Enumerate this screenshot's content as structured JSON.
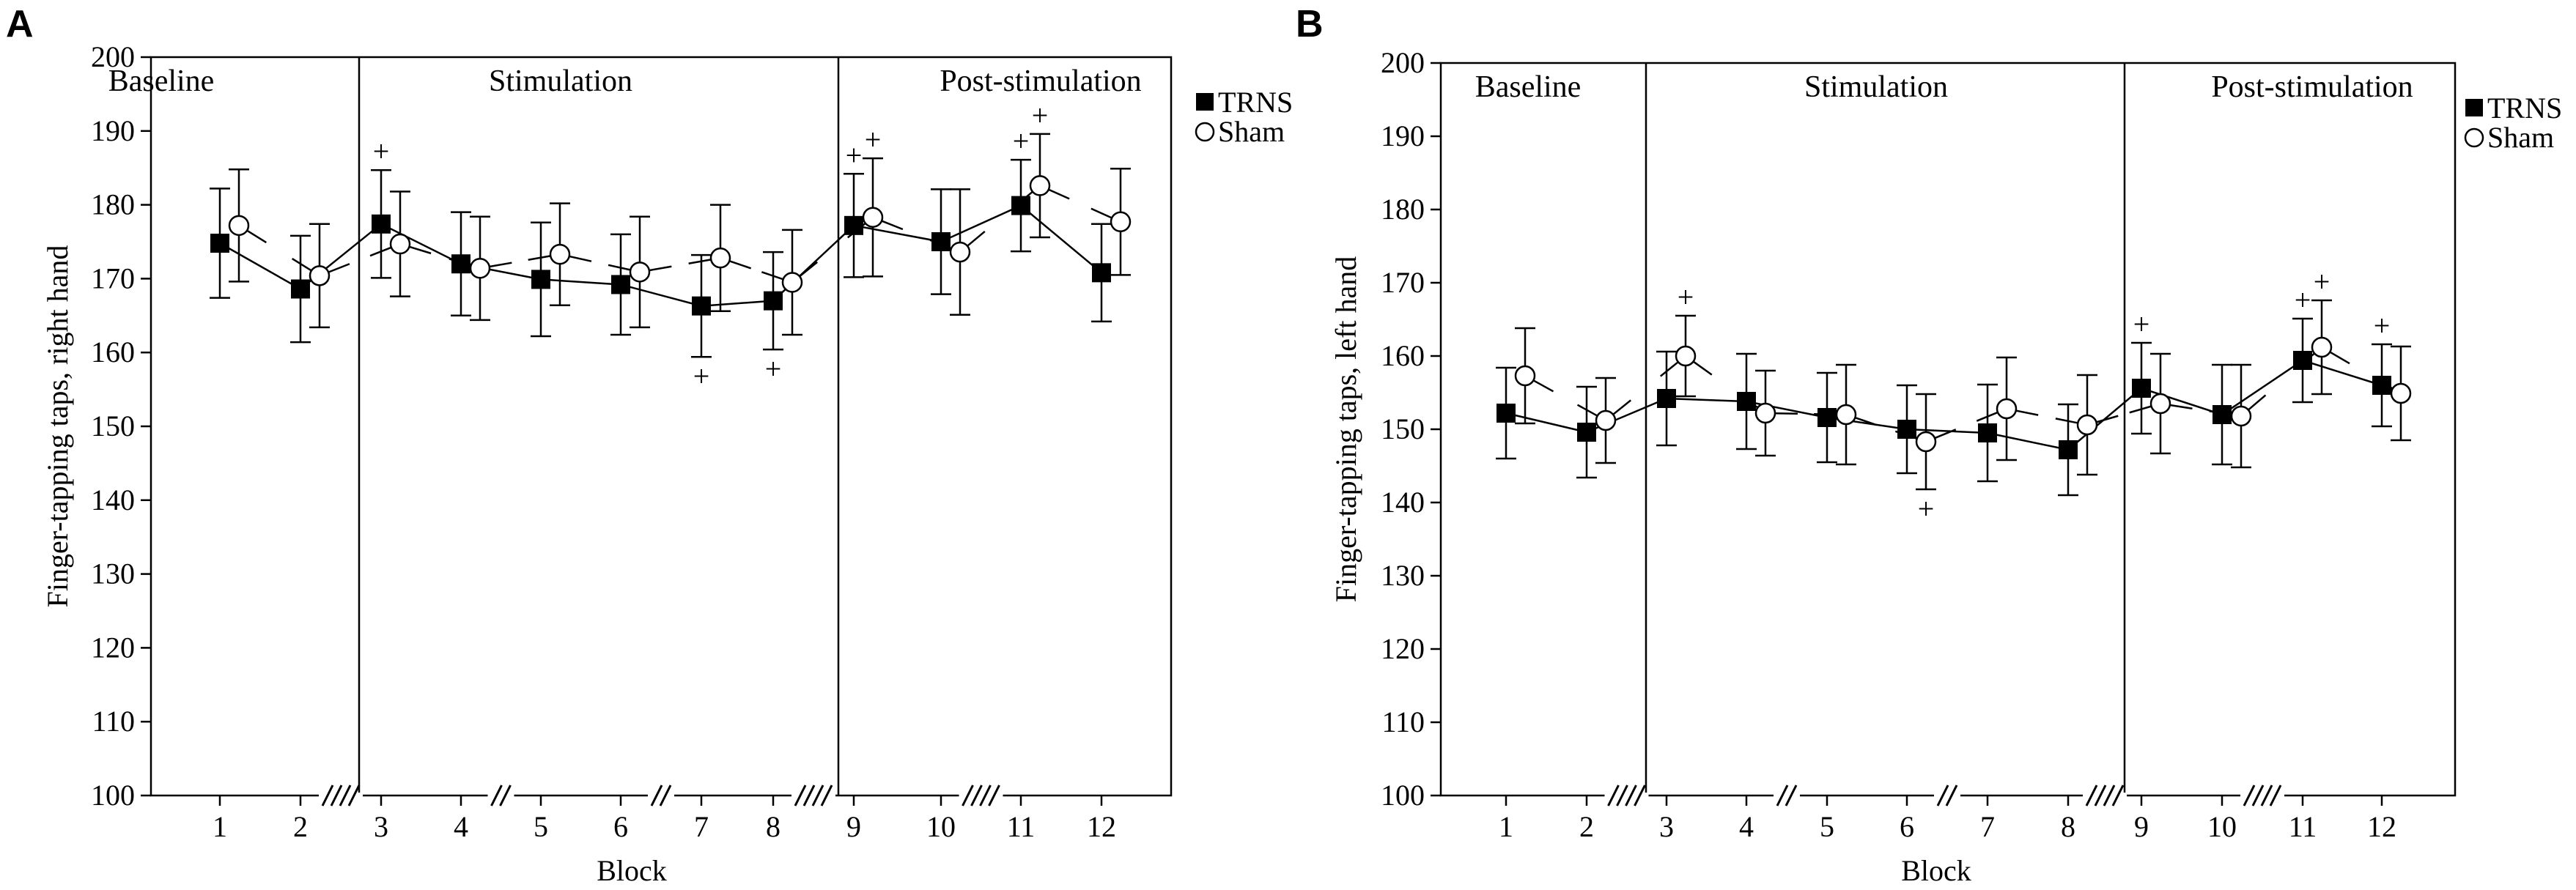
{
  "figure": {
    "description_units": "finger-tapping taps"
  },
  "chart_data": [
    {
      "type": "line",
      "panel": "A",
      "title": "",
      "xlabel": "Block",
      "ylabel": "Finger-tapping taps, right hand",
      "ylim": [
        100,
        200
      ],
      "yticks": [
        100,
        110,
        120,
        130,
        140,
        150,
        160,
        170,
        180,
        190,
        200
      ],
      "categories": [
        "1",
        "2",
        "3",
        "4",
        "5",
        "6",
        "7",
        "8",
        "9",
        "10",
        "11",
        "12"
      ],
      "phases": [
        {
          "label": "Baseline",
          "blocks": [
            1,
            2
          ]
        },
        {
          "label": "Stimulation",
          "blocks": [
            3,
            8
          ]
        },
        {
          "label": "Post-stimulation",
          "blocks": [
            9,
            12
          ]
        }
      ],
      "axis_breaks": [
        {
          "between": [
            2,
            3
          ],
          "marks": 4
        },
        {
          "between": [
            4,
            5
          ],
          "marks": 2
        },
        {
          "between": [
            6,
            7
          ],
          "marks": 2
        },
        {
          "between": [
            8,
            9
          ],
          "marks": 4
        },
        {
          "between": [
            10,
            11
          ],
          "marks": 4
        }
      ],
      "legend": [
        {
          "name": "TRNS",
          "marker": "filled-square"
        },
        {
          "name": "Sham",
          "marker": "open-circle"
        }
      ],
      "series": [
        {
          "name": "TRNS",
          "marker": "filled-square",
          "values": [
            174.8,
            168.6,
            177.4,
            172.0,
            169.9,
            169.2,
            166.3,
            167.0,
            177.2,
            175.0,
            179.9,
            170.8
          ],
          "error": [
            7.4,
            7.2,
            7.3,
            7.0,
            7.7,
            6.8,
            6.9,
            6.6,
            7.0,
            7.1,
            6.2,
            6.6
          ],
          "significant_plus": [
            false,
            false,
            true,
            false,
            false,
            false,
            true,
            true,
            true,
            false,
            true,
            false
          ],
          "plus_position": [
            "",
            "",
            "above",
            "",
            "",
            "",
            "below",
            "below",
            "above",
            "",
            "above",
            ""
          ]
        },
        {
          "name": "Sham",
          "marker": "open-circle",
          "values": [
            177.2,
            170.4,
            174.7,
            171.4,
            173.3,
            170.9,
            172.8,
            169.5,
            178.3,
            173.6,
            182.6,
            177.7
          ],
          "error": [
            7.6,
            7.0,
            7.1,
            7.0,
            6.9,
            7.5,
            7.2,
            7.1,
            8.0,
            8.5,
            7.0,
            7.2
          ],
          "significant_plus": [
            false,
            false,
            false,
            false,
            false,
            false,
            false,
            false,
            true,
            false,
            true,
            false
          ],
          "plus_position": [
            "",
            "",
            "",
            "",
            "",
            "",
            "",
            "",
            "above",
            "",
            "above",
            ""
          ]
        }
      ],
      "plus_symbol": "+"
    },
    {
      "type": "line",
      "panel": "B",
      "title": "",
      "xlabel": "Block",
      "ylabel": "Finger-tapping taps, left hand",
      "ylim": [
        100,
        200
      ],
      "yticks": [
        100,
        110,
        120,
        130,
        140,
        150,
        160,
        170,
        180,
        190,
        200
      ],
      "categories": [
        "1",
        "2",
        "3",
        "4",
        "5",
        "6",
        "7",
        "8",
        "9",
        "10",
        "11",
        "12"
      ],
      "phases": [
        {
          "label": "Baseline",
          "blocks": [
            1,
            2
          ]
        },
        {
          "label": "Stimulation",
          "blocks": [
            3,
            8
          ]
        },
        {
          "label": "Post-stimulation",
          "blocks": [
            9,
            12
          ]
        }
      ],
      "axis_breaks": [
        {
          "between": [
            2,
            3
          ],
          "marks": 4
        },
        {
          "between": [
            4,
            5
          ],
          "marks": 2
        },
        {
          "between": [
            6,
            7
          ],
          "marks": 2
        },
        {
          "between": [
            8,
            9
          ],
          "marks": 4
        },
        {
          "between": [
            10,
            11
          ],
          "marks": 4
        }
      ],
      "legend": [
        {
          "name": "TRNS",
          "marker": "filled-square"
        },
        {
          "name": "Sham",
          "marker": "open-circle"
        }
      ],
      "series": [
        {
          "name": "TRNS",
          "marker": "filled-square",
          "values": [
            152.2,
            149.6,
            154.2,
            153.8,
            151.6,
            150.0,
            149.5,
            147.2,
            155.6,
            152.0,
            159.4,
            156.0
          ],
          "error": [
            6.2,
            6.2,
            6.4,
            6.5,
            6.1,
            6.0,
            6.6,
            6.2,
            6.2,
            6.8,
            5.7,
            5.6
          ],
          "significant_plus": [
            false,
            false,
            false,
            false,
            false,
            false,
            false,
            false,
            true,
            false,
            true,
            true
          ],
          "plus_position": [
            "",
            "",
            "",
            "",
            "",
            "",
            "",
            "",
            "above",
            "",
            "above",
            "above"
          ]
        },
        {
          "name": "Sham",
          "marker": "open-circle",
          "values": [
            157.3,
            151.2,
            160.0,
            152.2,
            152.0,
            148.3,
            152.8,
            150.6,
            153.5,
            151.8,
            161.2,
            154.9
          ],
          "error": [
            6.5,
            5.8,
            5.5,
            5.8,
            6.8,
            6.5,
            7.0,
            6.8,
            6.8,
            7.0,
            6.4,
            6.4
          ],
          "significant_plus": [
            false,
            false,
            true,
            false,
            false,
            true,
            false,
            false,
            false,
            false,
            true,
            false
          ],
          "plus_position": [
            "",
            "",
            "above",
            "",
            "",
            "below",
            "",
            "",
            "",
            "",
            "above",
            ""
          ]
        }
      ],
      "plus_symbol": "+"
    }
  ]
}
